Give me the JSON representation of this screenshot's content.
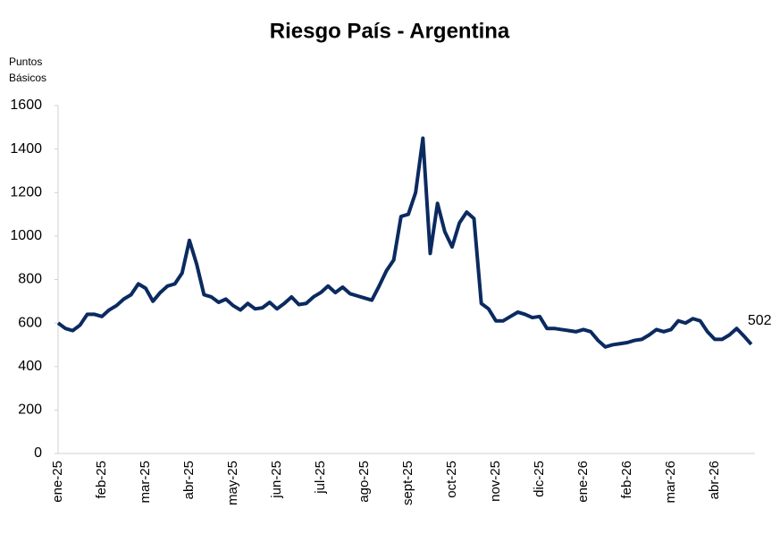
{
  "chart_data": {
    "type": "line",
    "title": "Riesgo País - Argentina",
    "ylabel": [
      "Puntos",
      "Básicos"
    ],
    "categories": [
      "ene-25",
      null,
      null,
      null,
      null,
      null,
      "feb-25",
      null,
      null,
      null,
      null,
      null,
      "mar-25",
      null,
      null,
      null,
      null,
      null,
      "abr-25",
      null,
      null,
      null,
      null,
      null,
      "may-25",
      null,
      null,
      null,
      null,
      null,
      "jun-25",
      null,
      null,
      null,
      null,
      null,
      "jul-25",
      null,
      null,
      null,
      null,
      null,
      "ago-25",
      null,
      null,
      null,
      null,
      null,
      "sept-25",
      null,
      null,
      null,
      null,
      null,
      "oct-25",
      null,
      null,
      null,
      null,
      null,
      "nov-25",
      null,
      null,
      null,
      null,
      null,
      "dic-25",
      null,
      null,
      null,
      null,
      null,
      "ene-26",
      null,
      null,
      null,
      null,
      null,
      "feb-26",
      null,
      null,
      null,
      null,
      null,
      "mar-26",
      null,
      null,
      null,
      null,
      null,
      "abr-26",
      null,
      null,
      null,
      null,
      null
    ],
    "series": [
      {
        "name": "Riesgo País",
        "color": "#0b2a60",
        "values": [
          600,
          575,
          565,
          590,
          640,
          640,
          630,
          660,
          680,
          710,
          730,
          780,
          760,
          700,
          740,
          770,
          780,
          830,
          980,
          870,
          730,
          720,
          695,
          710,
          680,
          660,
          690,
          665,
          670,
          695,
          665,
          690,
          720,
          685,
          690,
          720,
          740,
          770,
          740,
          765,
          735,
          725,
          715,
          705,
          770,
          840,
          890,
          1090,
          1100,
          1200,
          1450,
          920,
          1150,
          1020,
          950,
          1060,
          1110,
          1080,
          690,
          665,
          610,
          610,
          630,
          650,
          640,
          625,
          630,
          575,
          575,
          570,
          565,
          560,
          570,
          560,
          520,
          490,
          500,
          505,
          510,
          520,
          525,
          545,
          570,
          560,
          570,
          610,
          600,
          620,
          610,
          560,
          525,
          525,
          545,
          575,
          540,
          502
        ]
      }
    ],
    "ylim": [
      0,
      1600
    ],
    "yticks": [
      0,
      200,
      400,
      600,
      800,
      1000,
      1200,
      1400,
      1600
    ],
    "grid": false
  }
}
